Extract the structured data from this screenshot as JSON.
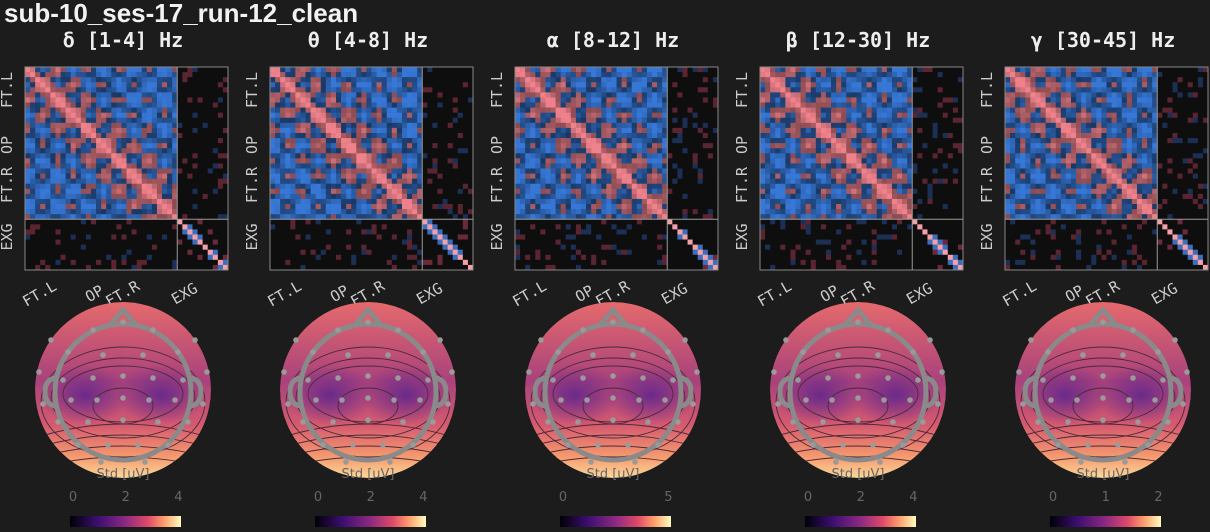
{
  "title": "sub-10_ses-17_run-12_clean",
  "panels": [
    {
      "title": "δ [1-4] Hz",
      "row_labels": [
        "FT.L",
        "OP",
        "FT.R",
        "EXG"
      ],
      "col_labels": [
        "FT.L",
        "OP",
        "FT.R",
        "EXG"
      ],
      "colorbar_label": "Std [uV]",
      "colorbar_ticks": [
        "0",
        "2",
        "4"
      ]
    },
    {
      "title": "θ [4-8] Hz",
      "row_labels": [
        "FT.L",
        "OP",
        "FT.R",
        "EXG"
      ],
      "col_labels": [
        "FT.L",
        "OP",
        "FT.R",
        "EXG"
      ],
      "colorbar_label": "Std [uV]",
      "colorbar_ticks": [
        "0",
        "2",
        "4"
      ]
    },
    {
      "title": "α [8-12] Hz",
      "row_labels": [
        "FT.L",
        "OP",
        "FT.R",
        "EXG"
      ],
      "col_labels": [
        "FT.L",
        "OP",
        "FT.R",
        "EXG"
      ],
      "colorbar_label": "Std [uV]",
      "colorbar_ticks": [
        "0",
        "5"
      ]
    },
    {
      "title": "β [12-30] Hz",
      "row_labels": [
        "FT.L",
        "OP",
        "FT.R",
        "EXG"
      ],
      "col_labels": [
        "FT.L",
        "OP",
        "FT.R",
        "EXG"
      ],
      "colorbar_label": "Std [uV]",
      "colorbar_ticks": [
        "0",
        "2",
        "4"
      ]
    },
    {
      "title": "γ [30-45] Hz",
      "row_labels": [
        "FT.L",
        "OP",
        "FT.R",
        "EXG"
      ],
      "col_labels": [
        "FT.L",
        "OP",
        "FT.R",
        "EXG"
      ],
      "colorbar_label": "Std [uV]",
      "colorbar_ticks": [
        "0",
        "1",
        "2"
      ]
    }
  ]
}
